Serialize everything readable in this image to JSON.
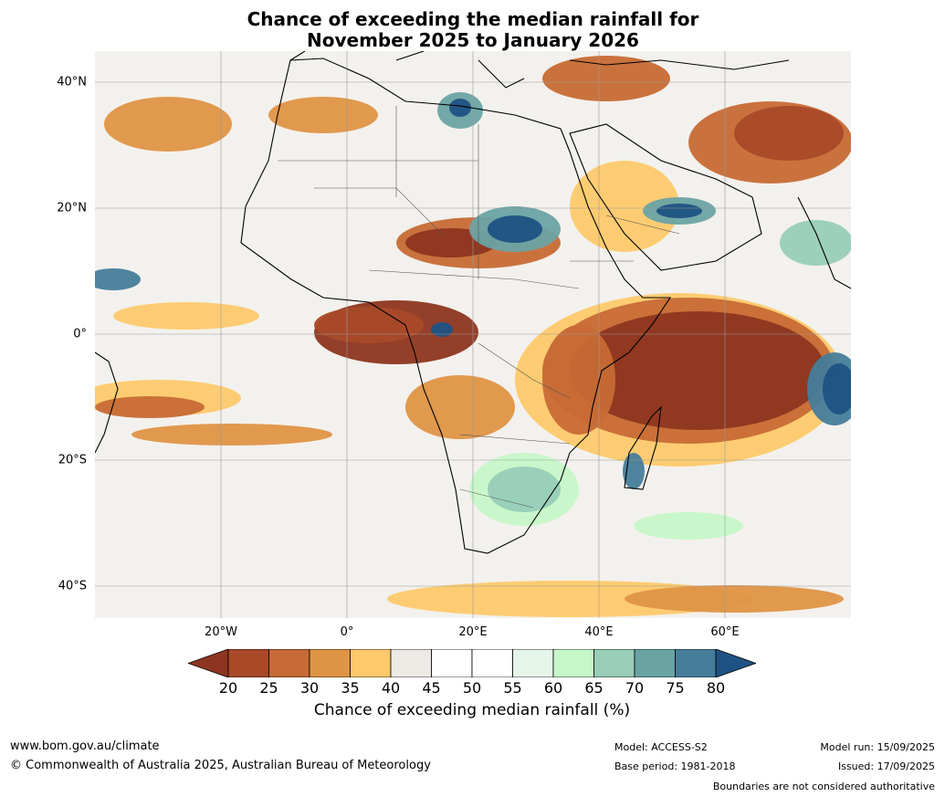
{
  "title_line1": "Chance of exceeding the median rainfall for",
  "title_line2": "November 2025 to January 2026",
  "map": {
    "lon_range": [
      -40,
      80
    ],
    "lat_range": [
      -45,
      45
    ],
    "lat_ticks": [
      "40°N",
      "20°N",
      "0°",
      "20°S",
      "40°S"
    ],
    "lon_ticks": [
      "20°W",
      "0°",
      "20°E",
      "40°E",
      "60°E"
    ],
    "gridlines": true
  },
  "colorbar": {
    "ticks": [
      "20",
      "25",
      "30",
      "35",
      "40",
      "45",
      "50",
      "55",
      "60",
      "65",
      "70",
      "75",
      "80"
    ],
    "colors": [
      "#8d3520",
      "#a84a28",
      "#c76a35",
      "#df9446",
      "#fdc96b",
      "#ede9e4",
      "#ffffff",
      "#ffffff",
      "#e6f5e9",
      "#c6f7c9",
      "#98cdb8",
      "#6aa3a4",
      "#467d9b",
      "#1d5283"
    ],
    "label": "Chance of exceeding median rainfall (%)"
  },
  "footer": {
    "website": "www.bom.gov.au/climate",
    "copyright": "© Commonwealth of Australia 2025, Australian Bureau of Meteorology",
    "model": "Model: ACCESS-S2",
    "base_period": "Base period: 1981-2018",
    "model_run": "Model run: 15/09/2025",
    "issued": "Issued: 17/09/2025",
    "disclaimer": "Boundaries are not considered authoritative"
  }
}
